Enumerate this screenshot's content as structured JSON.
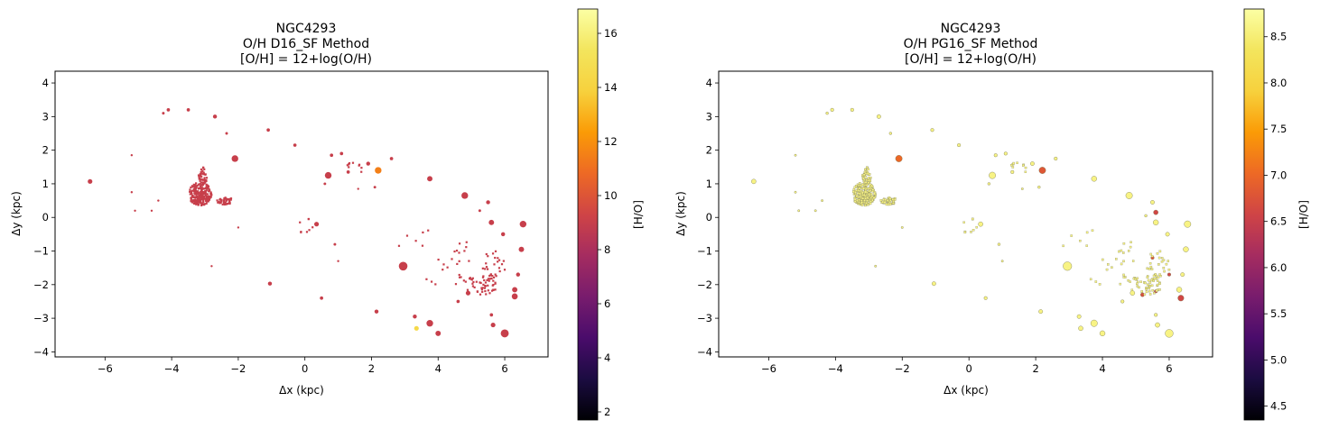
{
  "chart_data": [
    {
      "type": "scatter",
      "title_lines": [
        "NGC4293",
        "O/H D16_SF Method",
        "[O/H] = 12+log(O/H)"
      ],
      "xlabel": "Δx (kpc)",
      "ylabel": "Δy (kpc)",
      "xlim": [
        -7.5,
        7.3
      ],
      "ylim": [
        -4.15,
        4.35
      ],
      "xticks": [
        -6,
        -4,
        -2,
        0,
        2,
        4,
        6
      ],
      "yticks": [
        -4,
        -3,
        -2,
        -1,
        0,
        1,
        2,
        3,
        4
      ],
      "grid": false,
      "colormap": "inferno",
      "colorbar": {
        "label": "[H/O]",
        "range": [
          1.7,
          16.9
        ],
        "ticks": [
          2,
          4,
          6,
          8,
          10,
          12,
          14,
          16
        ]
      },
      "default_value": 9.0,
      "spots": [
        {
          "x": -3.15,
          "y": 0.7,
          "rx": 0.35,
          "ry": 0.35,
          "n": 220,
          "spread": true
        },
        {
          "x": -3.05,
          "y": 1.25,
          "rx": 0.15,
          "ry": 0.25,
          "n": 40,
          "spread": true
        },
        {
          "x": -2.4,
          "y": 0.5,
          "rx": 0.25,
          "ry": 0.12,
          "n": 40,
          "spread": true
        },
        {
          "x": -6.45,
          "y": 1.07,
          "r": 0.07
        },
        {
          "x": -4.1,
          "y": 3.2,
          "r": 0.05
        },
        {
          "x": -4.25,
          "y": 3.1,
          "r": 0.04
        },
        {
          "x": -3.5,
          "y": 3.2,
          "r": 0.05
        },
        {
          "x": -2.7,
          "y": 3.0,
          "r": 0.06
        },
        {
          "x": -2.35,
          "y": 2.5,
          "r": 0.04
        },
        {
          "x": -2.1,
          "y": 1.75,
          "r": 0.1
        },
        {
          "x": -1.1,
          "y": 2.6,
          "r": 0.05
        },
        {
          "x": -1.05,
          "y": -1.97,
          "r": 0.06
        },
        {
          "x": -2.8,
          "y": -1.45,
          "r": 0.03
        },
        {
          "x": -5.2,
          "y": 0.75,
          "r": 0.03
        },
        {
          "x": -5.1,
          "y": 0.2,
          "r": 0.03
        },
        {
          "x": -4.6,
          "y": 0.2,
          "r": 0.03
        },
        {
          "x": -5.2,
          "y": 1.85,
          "r": 0.025
        },
        {
          "x": -4.4,
          "y": 0.5,
          "r": 0.025
        },
        {
          "x": -2.0,
          "y": -0.3,
          "r": 0.025
        },
        {
          "x": -0.3,
          "y": 2.15,
          "r": 0.05
        },
        {
          "x": 0.35,
          "y": -0.2,
          "r": 0.07
        },
        {
          "x": 0.5,
          "y": -2.4,
          "r": 0.05
        },
        {
          "x": 0.7,
          "y": 1.25,
          "r": 0.1
        },
        {
          "x": 0.8,
          "y": 1.85,
          "r": 0.05
        },
        {
          "x": 1.1,
          "y": 1.9,
          "r": 0.05
        },
        {
          "x": 1.3,
          "y": 1.35,
          "r": 0.05
        },
        {
          "x": 1.0,
          "y": -1.3,
          "r": 0.03
        },
        {
          "x": 0.9,
          "y": -0.8,
          "r": 0.04
        },
        {
          "x": 0.6,
          "y": 1.0,
          "r": 0.04
        },
        {
          "x": 1.5,
          "y": 1.5,
          "r": 0.25,
          "n": 10,
          "spread": true
        },
        {
          "x": 1.6,
          "y": 0.85,
          "r": 0.03
        },
        {
          "x": 1.9,
          "y": 1.6,
          "r": 0.06
        },
        {
          "x": 2.2,
          "y": 1.4,
          "r": 0.1,
          "v": 11.5
        },
        {
          "x": 2.1,
          "y": 0.9,
          "r": 0.04
        },
        {
          "x": 2.6,
          "y": 1.75,
          "r": 0.05
        },
        {
          "x": 2.15,
          "y": -2.8,
          "r": 0.06
        },
        {
          "x": 2.95,
          "y": -1.45,
          "r": 0.13
        },
        {
          "x": 3.3,
          "y": -2.95,
          "r": 0.06
        },
        {
          "x": 3.35,
          "y": -3.3,
          "r": 0.07,
          "v": 14.5
        },
        {
          "x": 3.75,
          "y": -3.15,
          "r": 0.1
        },
        {
          "x": 4.0,
          "y": -3.45,
          "r": 0.08
        },
        {
          "x": 3.75,
          "y": 1.15,
          "r": 0.08
        },
        {
          "x": 4.8,
          "y": 0.65,
          "r": 0.1
        },
        {
          "x": 4.9,
          "y": -2.25,
          "r": 0.07
        },
        {
          "x": 4.6,
          "y": -2.5,
          "r": 0.05
        },
        {
          "x": 5.5,
          "y": 0.45,
          "r": 0.06
        },
        {
          "x": 5.25,
          "y": 0.2,
          "r": 0.04
        },
        {
          "x": 5.6,
          "y": -0.15,
          "r": 0.08
        },
        {
          "x": 6.55,
          "y": -0.2,
          "r": 0.1
        },
        {
          "x": 6.5,
          "y": -0.95,
          "r": 0.08
        },
        {
          "x": 6.4,
          "y": -1.7,
          "r": 0.06
        },
        {
          "x": 6.3,
          "y": -2.15,
          "r": 0.08
        },
        {
          "x": 6.3,
          "y": -2.35,
          "r": 0.09
        },
        {
          "x": 5.95,
          "y": -0.5,
          "r": 0.06
        },
        {
          "x": 5.65,
          "y": -3.2,
          "r": 0.07
        },
        {
          "x": 6.0,
          "y": -3.45,
          "r": 0.12
        },
        {
          "x": 5.6,
          "y": -2.9,
          "r": 0.05
        },
        {
          "x": 5.4,
          "y": -2.0,
          "r": 0.35,
          "n": 40,
          "spread": true
        },
        {
          "x": 5.7,
          "y": -1.4,
          "r": 0.4,
          "n": 25,
          "spread": true
        },
        {
          "x": 4.8,
          "y": -1.9,
          "r": 0.3,
          "n": 14,
          "spread": true
        },
        {
          "x": 4.7,
          "y": -1.1,
          "r": 0.4,
          "n": 10,
          "spread": true
        },
        {
          "x": 4.0,
          "y": -1.5,
          "r": 0.6,
          "n": 8,
          "spread": true
        },
        {
          "x": 3.3,
          "y": -0.8,
          "r": 0.6,
          "n": 6,
          "spread": true
        },
        {
          "x": 0.0,
          "y": -0.2,
          "r": 0.3,
          "n": 8,
          "spread": true
        }
      ]
    },
    {
      "type": "scatter",
      "title_lines": [
        "NGC4293",
        "O/H PG16_SF Method",
        "[O/H] = 12+log(O/H)"
      ],
      "xlabel": "Δx (kpc)",
      "ylabel": "Δy (kpc)",
      "xlim": [
        -7.5,
        7.3
      ],
      "ylim": [
        -4.15,
        4.35
      ],
      "xticks": [
        -6,
        -4,
        -2,
        0,
        2,
        4,
        6
      ],
      "yticks": [
        -4,
        -3,
        -2,
        -1,
        0,
        1,
        2,
        3,
        4
      ],
      "grid": false,
      "colormap": "inferno",
      "colorbar": {
        "label": "[H/O]",
        "range": [
          4.35,
          8.8
        ],
        "ticks": [
          4.5,
          5.0,
          5.5,
          6.0,
          6.5,
          7.0,
          7.5,
          8.0,
          8.5
        ],
        "tick_labels": [
          "4.5",
          "5.0",
          "5.5",
          "6.0",
          "6.5",
          "7.0",
          "7.5",
          "8.0",
          "8.5"
        ]
      },
      "default_value": 8.6,
      "spots": [
        {
          "x": -3.15,
          "y": 0.7,
          "rx": 0.35,
          "ry": 0.35,
          "n": 220,
          "spread": true
        },
        {
          "x": -3.05,
          "y": 1.25,
          "rx": 0.15,
          "ry": 0.25,
          "n": 40,
          "spread": true
        },
        {
          "x": -2.4,
          "y": 0.5,
          "rx": 0.25,
          "ry": 0.12,
          "n": 40,
          "spread": true
        },
        {
          "x": -6.45,
          "y": 1.07,
          "r": 0.07
        },
        {
          "x": -4.1,
          "y": 3.2,
          "r": 0.05
        },
        {
          "x": -4.25,
          "y": 3.1,
          "r": 0.04
        },
        {
          "x": -3.5,
          "y": 3.2,
          "r": 0.05
        },
        {
          "x": -2.7,
          "y": 3.0,
          "r": 0.06
        },
        {
          "x": -2.35,
          "y": 2.5,
          "r": 0.04
        },
        {
          "x": -2.1,
          "y": 1.75,
          "r": 0.1,
          "v": 7.0
        },
        {
          "x": -1.1,
          "y": 2.6,
          "r": 0.05
        },
        {
          "x": -1.05,
          "y": -1.97,
          "r": 0.06
        },
        {
          "x": -2.8,
          "y": -1.45,
          "r": 0.03
        },
        {
          "x": -5.2,
          "y": 0.75,
          "r": 0.03
        },
        {
          "x": -5.1,
          "y": 0.2,
          "r": 0.03
        },
        {
          "x": -4.6,
          "y": 0.2,
          "r": 0.03
        },
        {
          "x": -5.2,
          "y": 1.85,
          "r": 0.025
        },
        {
          "x": -4.4,
          "y": 0.5,
          "r": 0.025
        },
        {
          "x": -2.0,
          "y": -0.3,
          "r": 0.025
        },
        {
          "x": -0.3,
          "y": 2.15,
          "r": 0.05
        },
        {
          "x": 0.35,
          "y": -0.2,
          "r": 0.07
        },
        {
          "x": 0.5,
          "y": -2.4,
          "r": 0.05
        },
        {
          "x": 0.7,
          "y": 1.25,
          "r": 0.1
        },
        {
          "x": 0.8,
          "y": 1.85,
          "r": 0.05
        },
        {
          "x": 1.1,
          "y": 1.9,
          "r": 0.05
        },
        {
          "x": 1.3,
          "y": 1.35,
          "r": 0.05
        },
        {
          "x": 1.0,
          "y": -1.3,
          "r": 0.03
        },
        {
          "x": 0.9,
          "y": -0.8,
          "r": 0.04
        },
        {
          "x": 0.6,
          "y": 1.0,
          "r": 0.04
        },
        {
          "x": 1.5,
          "y": 1.5,
          "r": 0.25,
          "n": 10,
          "spread": true
        },
        {
          "x": 1.6,
          "y": 0.85,
          "r": 0.03
        },
        {
          "x": 1.9,
          "y": 1.6,
          "r": 0.06
        },
        {
          "x": 2.2,
          "y": 1.4,
          "r": 0.1,
          "v": 6.8
        },
        {
          "x": 2.1,
          "y": 0.9,
          "r": 0.04
        },
        {
          "x": 2.6,
          "y": 1.75,
          "r": 0.05
        },
        {
          "x": 2.15,
          "y": -2.8,
          "r": 0.06
        },
        {
          "x": 2.95,
          "y": -1.45,
          "r": 0.13
        },
        {
          "x": 3.3,
          "y": -2.95,
          "r": 0.06
        },
        {
          "x": 3.35,
          "y": -3.3,
          "r": 0.07
        },
        {
          "x": 3.75,
          "y": -3.15,
          "r": 0.1
        },
        {
          "x": 4.0,
          "y": -3.45,
          "r": 0.08
        },
        {
          "x": 3.75,
          "y": 1.15,
          "r": 0.08
        },
        {
          "x": 4.8,
          "y": 0.65,
          "r": 0.1
        },
        {
          "x": 4.9,
          "y": -2.25,
          "r": 0.07
        },
        {
          "x": 4.6,
          "y": -2.5,
          "r": 0.05
        },
        {
          "x": 5.5,
          "y": 0.45,
          "r": 0.06
        },
        {
          "x": 5.6,
          "y": 0.15,
          "r": 0.07,
          "v": 6.6
        },
        {
          "x": 5.3,
          "y": 0.05,
          "r": 0.04
        },
        {
          "x": 5.6,
          "y": -0.15,
          "r": 0.08
        },
        {
          "x": 6.55,
          "y": -0.2,
          "r": 0.1
        },
        {
          "x": 6.5,
          "y": -0.95,
          "r": 0.08
        },
        {
          "x": 6.4,
          "y": -1.7,
          "r": 0.06
        },
        {
          "x": 6.3,
          "y": -2.15,
          "r": 0.08
        },
        {
          "x": 6.35,
          "y": -2.4,
          "r": 0.09,
          "v": 6.6
        },
        {
          "x": 5.95,
          "y": -0.5,
          "r": 0.06
        },
        {
          "x": 5.65,
          "y": -3.2,
          "r": 0.07
        },
        {
          "x": 6.0,
          "y": -3.45,
          "r": 0.12
        },
        {
          "x": 5.6,
          "y": -2.9,
          "r": 0.05
        },
        {
          "x": 5.2,
          "y": -2.3,
          "r": 0.06,
          "v": 6.7
        },
        {
          "x": 5.6,
          "y": -2.2,
          "r": 0.05,
          "v": 6.5
        },
        {
          "x": 5.5,
          "y": -1.2,
          "r": 0.05,
          "v": 6.8
        },
        {
          "x": 6.0,
          "y": -1.7,
          "r": 0.05,
          "v": 6.6
        },
        {
          "x": 5.4,
          "y": -2.0,
          "r": 0.35,
          "n": 40,
          "spread": true
        },
        {
          "x": 5.7,
          "y": -1.4,
          "r": 0.4,
          "n": 25,
          "spread": true
        },
        {
          "x": 4.8,
          "y": -1.9,
          "r": 0.3,
          "n": 14,
          "spread": true
        },
        {
          "x": 4.7,
          "y": -1.1,
          "r": 0.4,
          "n": 10,
          "spread": true
        },
        {
          "x": 4.0,
          "y": -1.5,
          "r": 0.6,
          "n": 8,
          "spread": true
        },
        {
          "x": 3.3,
          "y": -0.8,
          "r": 0.6,
          "n": 6,
          "spread": true
        },
        {
          "x": 0.0,
          "y": -0.2,
          "r": 0.3,
          "n": 8,
          "spread": true
        }
      ]
    }
  ]
}
